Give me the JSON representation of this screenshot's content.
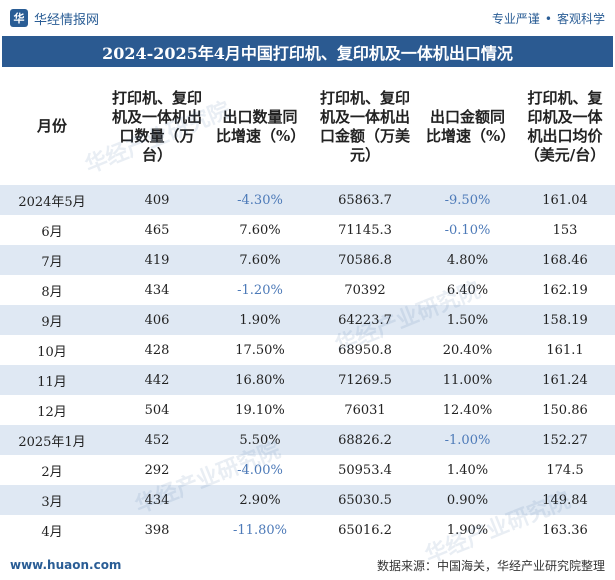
{
  "brand": {
    "name": "华经情报网",
    "slogan_left": "专业严谨",
    "slogan_right": "客观科学"
  },
  "title": "2024-2025年4月中国打印机、复印机及一体机出口情况",
  "columns": [
    "月份",
    "打印机、复印机及一体机出口数量（万台）",
    "出口数量同比增速（%）",
    "打印机、复印机及一体机出口金额（万美元）",
    "出口金额同比增速（%）",
    "打印机、复印机及一体机出口均价（美元/台）"
  ],
  "rows": [
    [
      "2024年5月",
      "409",
      "-4.30%",
      "65863.7",
      "-9.50%",
      "161.04"
    ],
    [
      "6月",
      "465",
      "7.60%",
      "71145.3",
      "-0.10%",
      "153"
    ],
    [
      "7月",
      "419",
      "7.60%",
      "70586.8",
      "4.80%",
      "168.46"
    ],
    [
      "8月",
      "434",
      "-1.20%",
      "70392",
      "6.40%",
      "162.19"
    ],
    [
      "9月",
      "406",
      "1.90%",
      "64223.7",
      "1.50%",
      "158.19"
    ],
    [
      "10月",
      "428",
      "17.50%",
      "68950.8",
      "20.40%",
      "161.1"
    ],
    [
      "11月",
      "442",
      "16.80%",
      "71269.5",
      "11.00%",
      "161.24"
    ],
    [
      "12月",
      "504",
      "19.10%",
      "76031",
      "12.40%",
      "150.86"
    ],
    [
      "2025年1月",
      "452",
      "5.50%",
      "68826.2",
      "-1.00%",
      "152.27"
    ],
    [
      "2月",
      "292",
      "-4.00%",
      "50953.4",
      "1.40%",
      "174.5"
    ],
    [
      "3月",
      "434",
      "2.90%",
      "65030.5",
      "0.90%",
      "149.84"
    ],
    [
      "4月",
      "398",
      "-11.80%",
      "65016.2",
      "1.90%",
      "163.36"
    ]
  ],
  "watermark": "华经产业研究院",
  "footer": {
    "url": "www.huaon.com",
    "source": "数据来源：中国海关，华经产业研究院整理"
  },
  "colors": {
    "header_bg": "#2b5a91",
    "stripe": "#dfe8f3",
    "negative": "#4d7ab8"
  }
}
